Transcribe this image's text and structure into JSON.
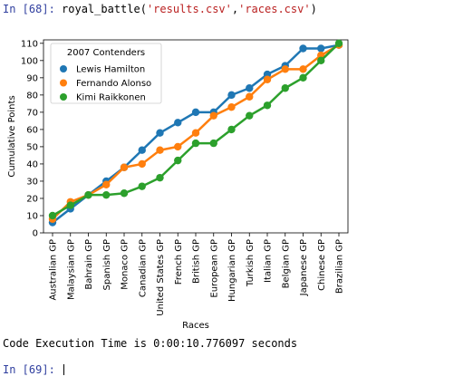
{
  "cell_in": {
    "prompt": "In [68]:",
    "code_func": "royal_battle(",
    "code_arg1": "'results.csv'",
    "code_sep": ",",
    "code_arg2": "'races.csv'",
    "code_end": ")"
  },
  "output": {
    "text": "Code Execution Time is 0:00:10.776097 seconds"
  },
  "cell_next": {
    "prompt": "In [69]:"
  },
  "chart_data": {
    "type": "line",
    "title": "",
    "xlabel": "Races",
    "ylabel": "Cumulative Points",
    "ylim": [
      0,
      110
    ],
    "yticks": [
      0,
      10,
      20,
      30,
      40,
      50,
      60,
      70,
      80,
      90,
      100,
      110
    ],
    "grid": false,
    "legend": {
      "title": "2007 Contenders",
      "placement": "top-left"
    },
    "categories": [
      "Australian GP",
      "Malaysian GP",
      "Bahrain GP",
      "Spanish GP",
      "Monaco GP",
      "Canadian GP",
      "United States GP",
      "French GP",
      "British GP",
      "European GP",
      "Hungarian GP",
      "Turkish GP",
      "Italian GP",
      "Belgian GP",
      "Japanese GP",
      "Chinese GP",
      "Brazilian GP"
    ],
    "series": [
      {
        "name": "Lewis Hamilton",
        "color": "#1f77b4",
        "values": [
          6,
          14,
          22,
          30,
          38,
          48,
          58,
          64,
          70,
          70,
          80,
          84,
          92,
          97,
          107,
          107,
          109
        ]
      },
      {
        "name": "Fernando Alonso",
        "color": "#ff7f0e",
        "values": [
          8,
          18,
          22,
          28,
          38,
          40,
          48,
          50,
          58,
          68,
          73,
          79,
          89,
          95,
          95,
          103,
          109
        ]
      },
      {
        "name": "Kimi Raikkonen",
        "color": "#2ca02c",
        "values": [
          10,
          16,
          22,
          22,
          23,
          27,
          32,
          42,
          52,
          52,
          60,
          68,
          74,
          84,
          90,
          100,
          110
        ]
      }
    ]
  }
}
